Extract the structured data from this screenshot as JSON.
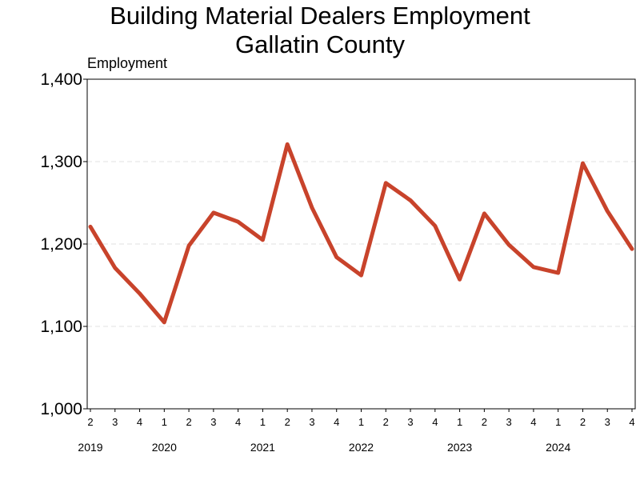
{
  "chart_data": {
    "type": "line",
    "title": [
      "Building Material Dealers Employment",
      "Gallatin County"
    ],
    "ylabel": "Employment",
    "xlabel": "",
    "ylim": [
      1000,
      1400
    ],
    "yticks": [
      1000,
      1100,
      1200,
      1300,
      1400
    ],
    "ytick_labels": [
      "1,000",
      "1,100",
      "1,200",
      "1,300",
      "1,400"
    ],
    "grid": "horizontal dashed",
    "line_color": "#c8432b",
    "quarter_labels": [
      "2",
      "3",
      "4",
      "1",
      "2",
      "3",
      "4",
      "1",
      "2",
      "3",
      "4",
      "1",
      "2",
      "3",
      "4",
      "1",
      "2",
      "3",
      "4",
      "1",
      "2",
      "3",
      "4"
    ],
    "year_labels": [
      {
        "label": "2019",
        "index": 0
      },
      {
        "label": "2020",
        "index": 3
      },
      {
        "label": "2021",
        "index": 7
      },
      {
        "label": "2022",
        "index": 11
      },
      {
        "label": "2023",
        "index": 15
      },
      {
        "label": "2024",
        "index": 19
      }
    ],
    "x": [
      "2019 Q2",
      "2019 Q3",
      "2019 Q4",
      "2020 Q1",
      "2020 Q2",
      "2020 Q3",
      "2020 Q4",
      "2021 Q1",
      "2021 Q2",
      "2021 Q3",
      "2021 Q4",
      "2022 Q1",
      "2022 Q2",
      "2022 Q3",
      "2022 Q4",
      "2023 Q1",
      "2023 Q2",
      "2023 Q3",
      "2023 Q4",
      "2024 Q1",
      "2024 Q2",
      "2024 Q3",
      "2024 Q4"
    ],
    "values": [
      1221,
      1171,
      1140,
      1105,
      1198,
      1238,
      1227,
      1205,
      1321,
      1244,
      1184,
      1162,
      1274,
      1253,
      1222,
      1157,
      1237,
      1199,
      1172,
      1165,
      1298,
      1240,
      1194
    ]
  }
}
